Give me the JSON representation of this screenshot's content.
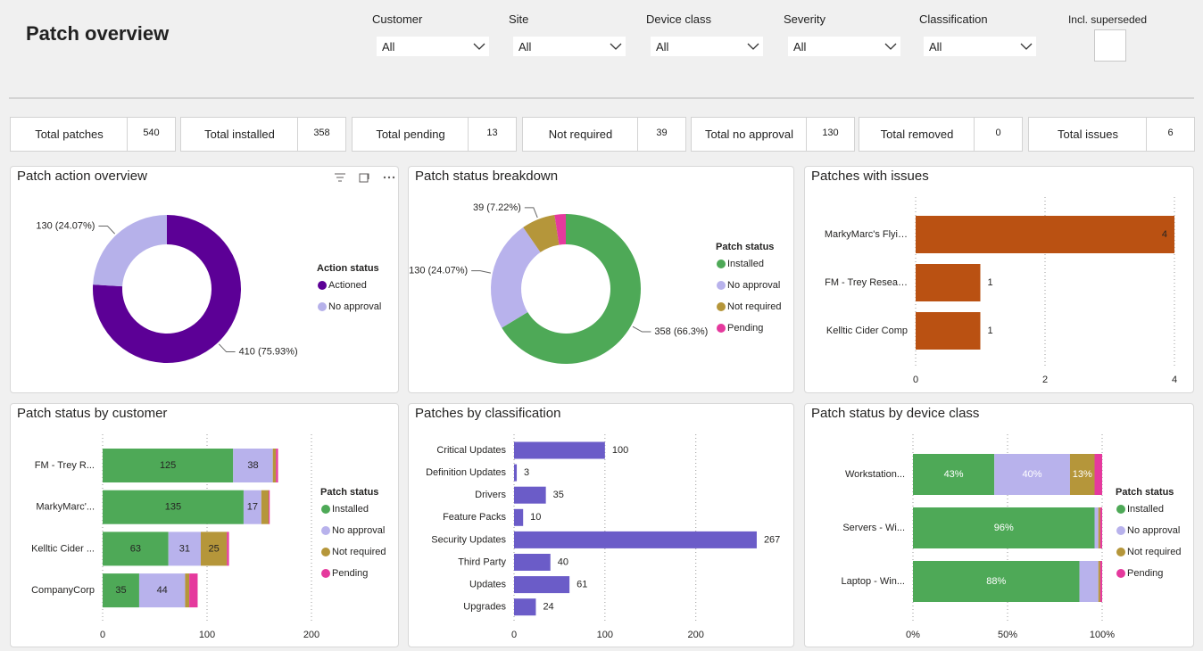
{
  "header": {
    "title": "Patch overview"
  },
  "filters": [
    {
      "label": "Customer",
      "value": "All"
    },
    {
      "label": "Site",
      "value": "All"
    },
    {
      "label": "Device class",
      "value": "All"
    },
    {
      "label": "Severity",
      "value": "All"
    },
    {
      "label": "Classification",
      "value": "All"
    }
  ],
  "superseded": {
    "label": "Incl. superseded",
    "checked": false
  },
  "kpis": [
    {
      "label": "Total patches",
      "value": 540
    },
    {
      "label": "Total installed",
      "value": 358
    },
    {
      "label": "Total pending",
      "value": 13
    },
    {
      "label": "Not required",
      "value": 39
    },
    {
      "label": "Total no approval",
      "value": 130
    },
    {
      "label": "Total removed",
      "value": 0
    },
    {
      "label": "Total issues",
      "value": 6
    }
  ],
  "chart_data": [
    {
      "type": "donut",
      "title": "Patch action overview",
      "legend_title": "Action status",
      "categories": [
        "Actioned",
        "No approval"
      ],
      "values": [
        410,
        130
      ],
      "value_labels": [
        "410 (75.93%)",
        "130 (24.07%)"
      ],
      "colors": [
        "#5c0096",
        "#b6b1ea"
      ],
      "legend": "right"
    },
    {
      "type": "donut",
      "title": "Patch status breakdown",
      "legend_title": "Patch status",
      "categories": [
        "Installed",
        "No approval",
        "Not required",
        "Pending"
      ],
      "values": [
        358,
        130,
        39,
        13
      ],
      "value_labels": [
        "358 (66.3%)",
        "130 (24.07%)",
        "39 (7.22%)",
        null
      ],
      "colors": [
        "#4ea957",
        "#b8b2ec",
        "#b5963a",
        "#e5399d"
      ],
      "legend": "right"
    },
    {
      "type": "hbar",
      "title": "Patches with issues",
      "categories": [
        "MarkyMarc's Flyi…",
        "FM - Trey Resea…",
        "Kelltic Cider Comp"
      ],
      "values": [
        4,
        1,
        1
      ],
      "color": "#ba5112",
      "xlim": [
        0,
        4
      ],
      "xticks": [
        0,
        2,
        4
      ],
      "grid": true
    },
    {
      "type": "stacked_hbar",
      "title": "Patch status by customer",
      "legend_title": "Patch status",
      "categories": [
        "FM - Trey R...",
        "MarkyMarc'...",
        "Kelltic Cider ...",
        "CompanyCorp"
      ],
      "series": [
        {
          "name": "Installed",
          "color": "#4ea957",
          "values": [
            125,
            135,
            63,
            35
          ]
        },
        {
          "name": "No approval",
          "color": "#b8b2ec",
          "values": [
            38,
            17,
            31,
            44
          ]
        },
        {
          "name": "Not required",
          "color": "#b5963a",
          "values": [
            3,
            7,
            25,
            4
          ]
        },
        {
          "name": "Pending",
          "color": "#e5399d",
          "values": [
            2,
            1,
            2,
            8
          ]
        }
      ],
      "xlim": [
        0,
        200
      ],
      "xticks": [
        0,
        100,
        200
      ],
      "grid": true,
      "legend": "right"
    },
    {
      "type": "hbar",
      "title": "Patches by classification",
      "categories": [
        "Critical Updates",
        "Definition Updates",
        "Drivers",
        "Feature Packs",
        "Security Updates",
        "Third Party",
        "Updates",
        "Upgrades"
      ],
      "values": [
        100,
        3,
        35,
        10,
        267,
        40,
        61,
        24
      ],
      "color": "#6b5cc8",
      "xlim": [
        0,
        270
      ],
      "xticks": [
        0,
        100,
        200
      ],
      "grid": true
    },
    {
      "type": "stacked_hbar",
      "title": "Patch status by device class",
      "legend_title": "Patch status",
      "categories": [
        "Workstation...",
        "Servers - Wi...",
        "Laptop - Win..."
      ],
      "series": [
        {
          "name": "Installed",
          "color": "#4ea957",
          "values": [
            43,
            96,
            88
          ],
          "value_labels": [
            "43%",
            "96%",
            "88%"
          ]
        },
        {
          "name": "No approval",
          "color": "#b8b2ec",
          "values": [
            40,
            2,
            10
          ],
          "value_labels": [
            "40%",
            null,
            null
          ]
        },
        {
          "name": "Not required",
          "color": "#b5963a",
          "values": [
            13,
            1,
            1
          ],
          "value_labels": [
            "13%",
            null,
            null
          ]
        },
        {
          "name": "Pending",
          "color": "#e5399d",
          "values": [
            4,
            1,
            1
          ]
        }
      ],
      "xlim": [
        0,
        100
      ],
      "xticks": [
        {
          "value": 0,
          "label": "0%"
        },
        {
          "value": 50,
          "label": "50%"
        },
        {
          "value": 100,
          "label": "100%"
        }
      ],
      "grid": true,
      "legend": "right"
    }
  ]
}
